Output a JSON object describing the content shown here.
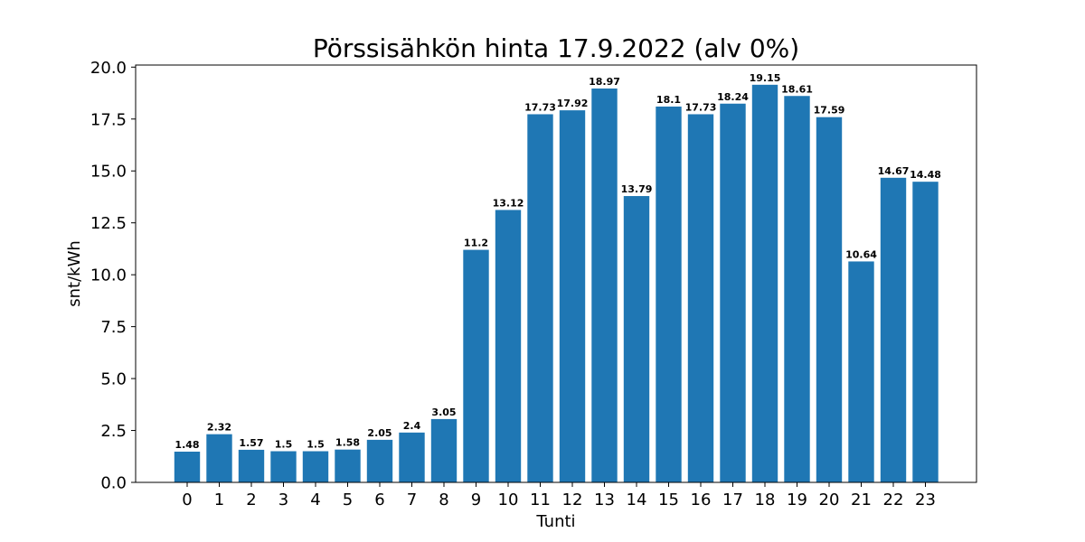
{
  "chart_data": {
    "type": "bar",
    "title": "Pörssisähkön hinta 17.9.2022 (alv 0%)",
    "xlabel": "Tunti",
    "ylabel": "snt/kWh",
    "categories": [
      "0",
      "1",
      "2",
      "3",
      "4",
      "5",
      "6",
      "7",
      "8",
      "9",
      "10",
      "11",
      "12",
      "13",
      "14",
      "15",
      "16",
      "17",
      "18",
      "19",
      "20",
      "21",
      "22",
      "23"
    ],
    "values": [
      1.48,
      2.32,
      1.57,
      1.5,
      1.5,
      1.58,
      2.05,
      2.4,
      3.05,
      11.2,
      13.12,
      17.73,
      17.92,
      18.97,
      13.79,
      18.1,
      17.73,
      18.24,
      19.15,
      18.61,
      17.59,
      10.64,
      14.67,
      14.48
    ],
    "value_labels": [
      "1.48",
      "2.32",
      "1.57",
      "1.5",
      "1.5",
      "1.58",
      "2.05",
      "2.4",
      "3.05",
      "11.2",
      "13.12",
      "17.73",
      "17.92",
      "18.97",
      "13.79",
      "18.1",
      "17.73",
      "18.24",
      "19.15",
      "18.61",
      "17.59",
      "10.64",
      "14.67",
      "14.48"
    ],
    "ylim": [
      0,
      20.1
    ],
    "yticks": [
      "0.0",
      "2.5",
      "5.0",
      "7.5",
      "10.0",
      "12.5",
      "15.0",
      "17.5",
      "20.0"
    ],
    "grid": false,
    "bar_color": "#1f77b4"
  }
}
